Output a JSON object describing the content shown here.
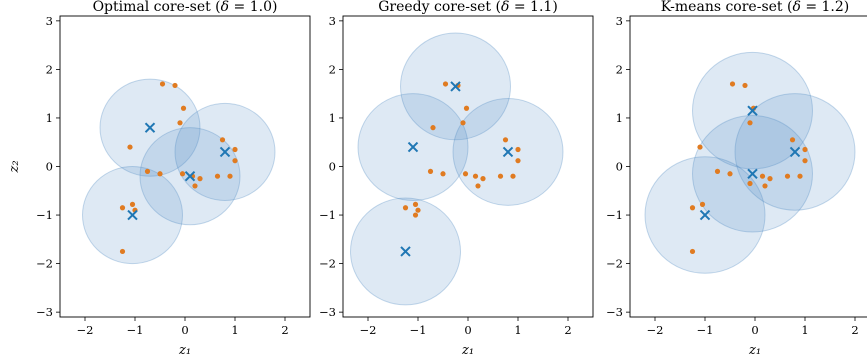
{
  "figure": {
    "colors": {
      "points": "#e07b21",
      "centers": "#1f77b4",
      "circles": "#4e8ac2"
    }
  },
  "chart_data": [
    {
      "type": "scatter",
      "title": "Optimal core-set (δ = 1.0)",
      "title_prefix": "Optimal core-set (",
      "delta_symbol": "δ",
      "delta_value": " = 1.0)",
      "xlabel": "z₁",
      "ylabel": "z₂",
      "xlim": [
        -2.5,
        2.5
      ],
      "ylim": [
        -3.1,
        3.1
      ],
      "xticks": [
        -2,
        -1,
        0,
        1,
        2
      ],
      "yticks": [
        -3,
        -2,
        -1,
        0,
        1,
        2,
        3
      ],
      "radius": 1.0,
      "centers": [
        [
          -0.7,
          0.8
        ],
        [
          -1.05,
          -1.0
        ],
        [
          0.1,
          -0.2
        ],
        [
          0.8,
          0.3
        ]
      ],
      "points": [
        [
          -0.45,
          1.7
        ],
        [
          -0.2,
          1.67
        ],
        [
          -0.03,
          1.2
        ],
        [
          -0.1,
          0.9
        ],
        [
          -1.1,
          0.4
        ],
        [
          -0.75,
          -0.1
        ],
        [
          -0.5,
          -0.15
        ],
        [
          -0.05,
          -0.15
        ],
        [
          0.15,
          -0.2
        ],
        [
          0.2,
          -0.4
        ],
        [
          0.3,
          -0.25
        ],
        [
          0.65,
          -0.2
        ],
        [
          0.9,
          -0.2
        ],
        [
          0.75,
          0.55
        ],
        [
          1.0,
          0.35
        ],
        [
          1.0,
          0.12
        ],
        [
          -1.25,
          -0.85
        ],
        [
          -1.05,
          -0.78
        ],
        [
          -1.0,
          -0.9
        ],
        [
          -1.25,
          -1.75
        ]
      ]
    },
    {
      "type": "scatter",
      "title": "Greedy core-set (δ = 1.1)",
      "title_prefix": "Greedy core-set (",
      "delta_symbol": "δ",
      "delta_value": " = 1.1)",
      "xlabel": "z₁",
      "xlim": [
        -2.5,
        2.5
      ],
      "ylim": [
        -3.1,
        3.1
      ],
      "xticks": [
        -2,
        -1,
        0,
        1,
        2
      ],
      "yticks": [
        -3,
        -2,
        -1,
        0,
        1,
        2,
        3
      ],
      "radius": 1.1,
      "centers": [
        [
          -0.25,
          1.65
        ],
        [
          -1.1,
          0.4
        ],
        [
          0.8,
          0.3
        ],
        [
          -1.25,
          -1.75
        ]
      ],
      "points": [
        [
          -0.45,
          1.7
        ],
        [
          -0.2,
          1.67
        ],
        [
          -0.03,
          1.2
        ],
        [
          -0.1,
          0.9
        ],
        [
          -0.7,
          0.8
        ],
        [
          -0.75,
          -0.1
        ],
        [
          -0.5,
          -0.15
        ],
        [
          -0.05,
          -0.15
        ],
        [
          0.15,
          -0.2
        ],
        [
          0.2,
          -0.4
        ],
        [
          0.3,
          -0.25
        ],
        [
          0.65,
          -0.2
        ],
        [
          0.9,
          -0.2
        ],
        [
          0.75,
          0.55
        ],
        [
          1.0,
          0.35
        ],
        [
          1.0,
          0.12
        ],
        [
          -1.25,
          -0.85
        ],
        [
          -1.05,
          -0.78
        ],
        [
          -1.0,
          -0.9
        ],
        [
          -1.05,
          -1.0
        ]
      ]
    },
    {
      "type": "scatter",
      "title": "K-means core-set (δ = 1.2)",
      "title_prefix": "K-means core-set (",
      "delta_symbol": "δ",
      "delta_value": " = 1.2)",
      "xlabel": "z₁",
      "xlim": [
        -2.5,
        2.5
      ],
      "ylim": [
        -3.1,
        3.1
      ],
      "xticks": [
        -2,
        -1,
        0,
        1,
        2
      ],
      "yticks": [
        -3,
        -2,
        -1,
        0,
        1,
        2,
        3
      ],
      "radius": 1.2,
      "centers": [
        [
          -0.05,
          1.15
        ],
        [
          -1.0,
          -1.0
        ],
        [
          -0.05,
          -0.15
        ],
        [
          0.8,
          0.3
        ]
      ],
      "points": [
        [
          -0.45,
          1.7
        ],
        [
          -0.2,
          1.67
        ],
        [
          -0.03,
          1.2
        ],
        [
          -0.1,
          0.9
        ],
        [
          -1.1,
          0.4
        ],
        [
          -0.75,
          -0.1
        ],
        [
          -0.5,
          -0.15
        ],
        [
          0.15,
          -0.2
        ],
        [
          0.2,
          -0.4
        ],
        [
          0.3,
          -0.25
        ],
        [
          0.65,
          -0.2
        ],
        [
          0.9,
          -0.2
        ],
        [
          0.75,
          0.55
        ],
        [
          1.0,
          0.35
        ],
        [
          1.0,
          0.12
        ],
        [
          -1.25,
          -0.85
        ],
        [
          -1.05,
          -0.78
        ],
        [
          -1.25,
          -1.75
        ],
        [
          -0.1,
          -0.35
        ]
      ]
    }
  ]
}
